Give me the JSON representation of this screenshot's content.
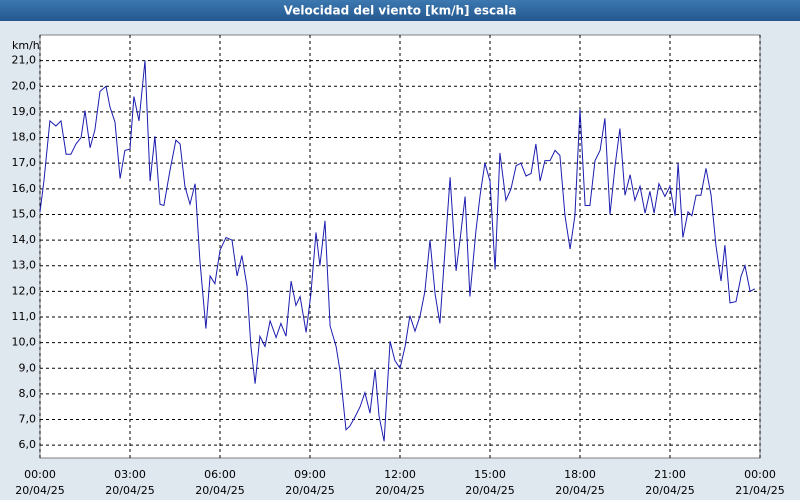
{
  "chart_data": {
    "type": "line",
    "title": "Velocidad del viento [km/h] escala",
    "y_label": "km/h",
    "color": "#1c1cb0",
    "grid": true,
    "xlim": [
      0,
      24
    ],
    "ylim": [
      5.5,
      22
    ],
    "xticks": [
      {
        "value": 0,
        "label": "00:00",
        "date": "20/04/25"
      },
      {
        "value": 3,
        "label": "03:00",
        "date": "20/04/25"
      },
      {
        "value": 6,
        "label": "06:00",
        "date": "20/04/25"
      },
      {
        "value": 9,
        "label": "09:00",
        "date": "20/04/25"
      },
      {
        "value": 12,
        "label": "12:00",
        "date": "20/04/25"
      },
      {
        "value": 15,
        "label": "15:00",
        "date": "20/04/25"
      },
      {
        "value": 18,
        "label": "18:00",
        "date": "20/04/25"
      },
      {
        "value": 21,
        "label": "21:00",
        "date": "20/04/25"
      },
      {
        "value": 24,
        "label": "00:00",
        "date": "21/04/25"
      }
    ],
    "yticks": [
      {
        "value": 6,
        "label": "6,0"
      },
      {
        "value": 7,
        "label": "7,0"
      },
      {
        "value": 8,
        "label": "8,0"
      },
      {
        "value": 9,
        "label": "9,0"
      },
      {
        "value": 10,
        "label": "10,0"
      },
      {
        "value": 11,
        "label": "11,0"
      },
      {
        "value": 12,
        "label": "12,0"
      },
      {
        "value": 13,
        "label": "13,0"
      },
      {
        "value": 14,
        "label": "14,0"
      },
      {
        "value": 15,
        "label": "15,0"
      },
      {
        "value": 16,
        "label": "16,0"
      },
      {
        "value": 17,
        "label": "17,0"
      },
      {
        "value": 18,
        "label": "18,0"
      },
      {
        "value": 19,
        "label": "19,0"
      },
      {
        "value": 20,
        "label": "20,0"
      },
      {
        "value": 21,
        "label": "21,0"
      }
    ],
    "x": [
      0,
      0.13,
      0.33,
      0.53,
      0.7,
      0.87,
      1.03,
      1.2,
      1.37,
      1.5,
      1.67,
      1.83,
      2,
      2.2,
      2.33,
      2.5,
      2.67,
      2.83,
      3,
      3.13,
      3.3,
      3.5,
      3.67,
      3.83,
      4,
      4.13,
      4.33,
      4.53,
      4.67,
      4.83,
      5,
      5.17,
      5.33,
      5.53,
      5.67,
      5.83,
      6,
      6.2,
      6.4,
      6.57,
      6.73,
      6.9,
      7.03,
      7.17,
      7.33,
      7.5,
      7.67,
      7.87,
      8.03,
      8.2,
      8.37,
      8.53,
      8.67,
      8.87,
      9.03,
      9.2,
      9.33,
      9.5,
      9.67,
      9.87,
      10,
      10.2,
      10.33,
      10.5,
      10.67,
      10.83,
      11,
      11.17,
      11.3,
      11.47,
      11.67,
      11.83,
      12,
      12.17,
      12.33,
      12.5,
      12.67,
      12.83,
      13,
      13.17,
      13.33,
      13.5,
      13.67,
      13.87,
      14,
      14.17,
      14.33,
      14.53,
      14.67,
      14.83,
      15,
      15.17,
      15.33,
      15.53,
      15.7,
      15.87,
      16.03,
      16.2,
      16.37,
      16.53,
      16.67,
      16.83,
      17,
      17.17,
      17.33,
      17.5,
      17.67,
      17.83,
      18,
      18.17,
      18.33,
      18.5,
      18.67,
      18.83,
      19,
      19.17,
      19.33,
      19.5,
      19.67,
      19.83,
      20,
      20.17,
      20.33,
      20.47,
      20.63,
      20.83,
      21,
      21.17,
      21.27,
      21.43,
      21.6,
      21.73,
      21.87,
      22.03,
      22.2,
      22.37,
      22.53,
      22.7,
      22.83,
      23,
      23.2,
      23.37,
      23.5,
      23.67,
      23.83
    ],
    "values": [
      15.1,
      16.3,
      18.65,
      18.45,
      18.65,
      17.35,
      17.35,
      17.75,
      18.0,
      19.05,
      17.6,
      18.3,
      19.8,
      20.0,
      19.2,
      18.6,
      16.4,
      17.5,
      17.55,
      19.6,
      18.65,
      21.0,
      16.3,
      18.05,
      15.4,
      15.35,
      16.7,
      17.9,
      17.75,
      16.1,
      15.4,
      16.2,
      13.2,
      10.55,
      12.6,
      12.3,
      13.6,
      14.1,
      14.0,
      12.6,
      13.4,
      12.2,
      9.85,
      8.4,
      10.25,
      9.85,
      10.85,
      10.2,
      10.75,
      10.25,
      12.4,
      11.45,
      11.8,
      10.4,
      11.9,
      14.3,
      13.0,
      14.75,
      10.65,
      9.85,
      8.9,
      6.6,
      6.75,
      7.1,
      7.5,
      8.05,
      7.25,
      8.95,
      7.15,
      6.15,
      10.05,
      9.3,
      9.0,
      9.85,
      11.05,
      10.45,
      11.05,
      12.0,
      14.0,
      11.9,
      10.75,
      13.6,
      16.45,
      12.8,
      14.0,
      15.7,
      11.8,
      14.35,
      15.75,
      17.0,
      16.3,
      12.85,
      17.4,
      15.55,
      16.0,
      16.9,
      17.0,
      16.5,
      16.6,
      17.75,
      16.3,
      17.1,
      17.1,
      17.5,
      17.3,
      14.95,
      13.65,
      14.95,
      19.1,
      15.35,
      15.35,
      17.1,
      17.5,
      18.75,
      15.0,
      16.9,
      18.35,
      15.75,
      16.55,
      15.55,
      16.1,
      15.05,
      15.9,
      15.05,
      16.2,
      15.7,
      16.1,
      14.95,
      17.0,
      14.1,
      15.1,
      14.95,
      15.75,
      15.75,
      16.8,
      15.75,
      13.8,
      12.4,
      13.8,
      11.55,
      11.6,
      12.6,
      13.0,
      12.0,
      12.1
    ]
  }
}
